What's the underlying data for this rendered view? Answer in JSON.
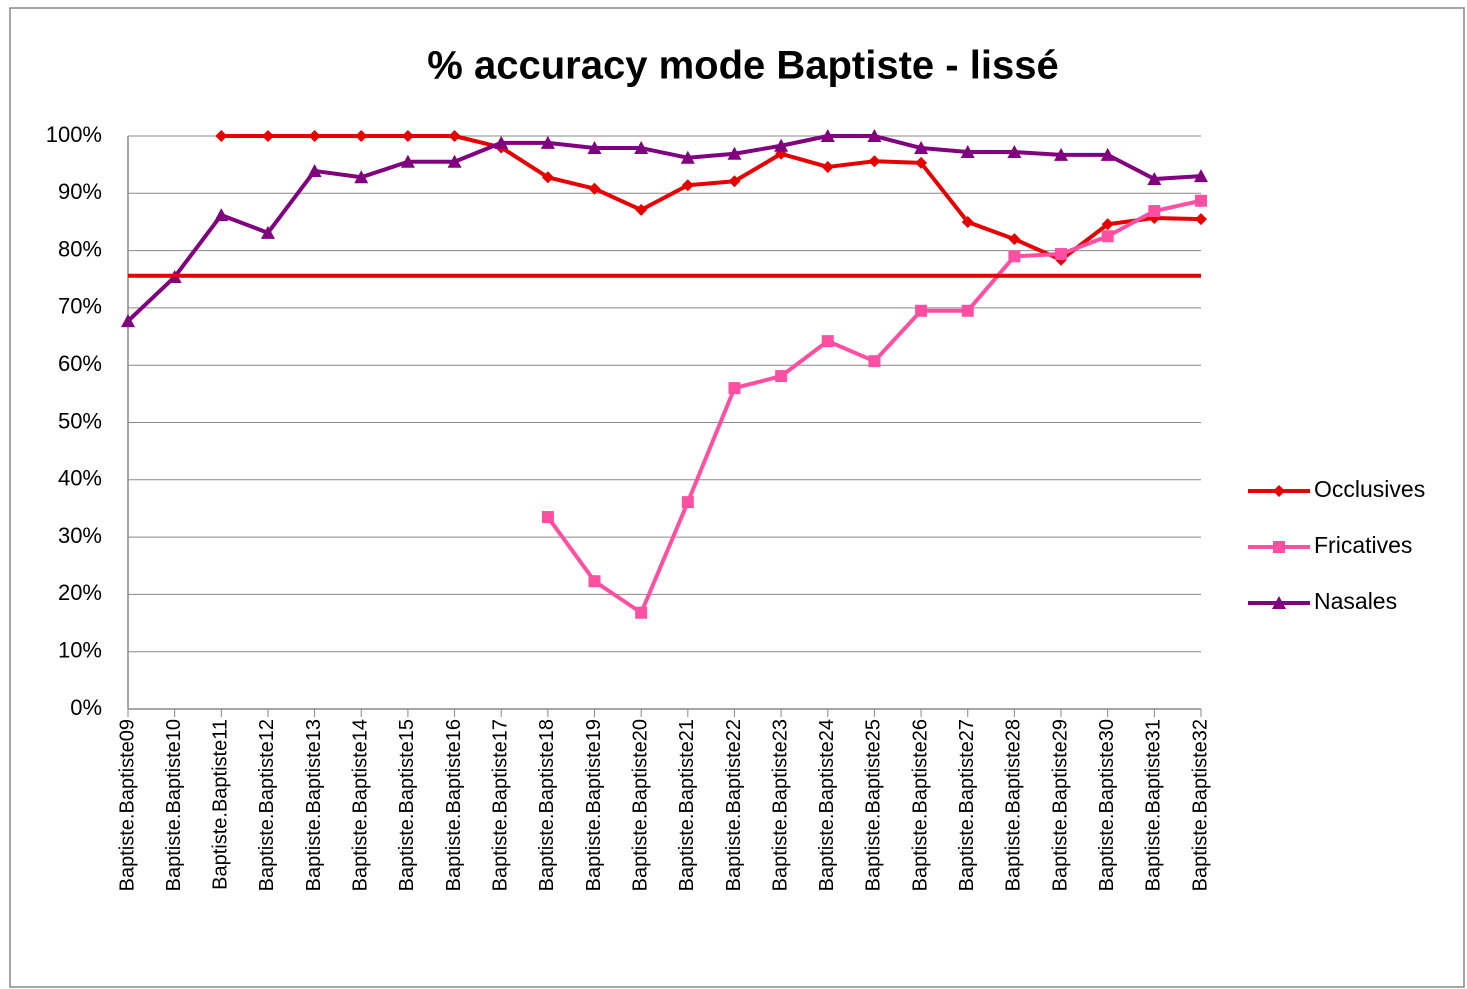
{
  "chart_data": {
    "type": "line",
    "title": "% accuracy mode Baptiste - lissé",
    "categories": [
      "Baptiste.Baptiste09",
      "Baptiste.Baptiste10",
      "Baptiste.Baptiste11",
      "Baptiste.Baptiste12",
      "Baptiste.Baptiste13",
      "Baptiste.Baptiste14",
      "Baptiste.Baptiste15",
      "Baptiste.Baptiste16",
      "Baptiste.Baptiste17",
      "Baptiste.Baptiste18",
      "Baptiste.Baptiste19",
      "Baptiste.Baptiste20",
      "Baptiste.Baptiste21",
      "Baptiste.Baptiste22",
      "Baptiste.Baptiste23",
      "Baptiste.Baptiste24",
      "Baptiste.Baptiste25",
      "Baptiste.Baptiste26",
      "Baptiste.Baptiste27",
      "Baptiste.Baptiste28",
      "Baptiste.Baptiste29",
      "Baptiste.Baptiste30",
      "Baptiste.Baptiste31",
      "Baptiste.Baptiste32"
    ],
    "series": [
      {
        "name": "Occlusives",
        "color": "#e60000",
        "marker": "diamond",
        "values": [
          null,
          null,
          100,
          100,
          100,
          100,
          100,
          100,
          98,
          92.8,
          90.8,
          87.1,
          91.4,
          92.1,
          96.9,
          94.6,
          95.6,
          95.3,
          85,
          82,
          78.4,
          84.6,
          85.7,
          85.5
        ]
      },
      {
        "name": "Fricatives",
        "color": "#ff4fa3",
        "marker": "square",
        "values": [
          null,
          null,
          null,
          null,
          null,
          null,
          null,
          null,
          null,
          33.5,
          22.3,
          16.8,
          36.1,
          56,
          58.1,
          64.2,
          60.7,
          69.5,
          69.5,
          79,
          79.4,
          82.5,
          86.9,
          88.7
        ]
      },
      {
        "name": "Nasales",
        "color": "#800080",
        "marker": "triangle",
        "values": [
          67.7,
          75.4,
          86.2,
          83.1,
          93.9,
          92.8,
          95.5,
          95.5,
          98.8,
          98.8,
          97.9,
          97.9,
          96.2,
          96.9,
          98.3,
          100,
          100,
          97.9,
          97.2,
          97.2,
          96.7,
          96.7,
          92.5,
          93
        ]
      }
    ],
    "reference_line": {
      "value": 75.6,
      "color": "#e60000"
    },
    "ylim": [
      0,
      100
    ],
    "yticks": [
      {
        "value": 0,
        "label": "0%"
      },
      {
        "value": 10,
        "label": "10%"
      },
      {
        "value": 20,
        "label": "20%"
      },
      {
        "value": 30,
        "label": "30%"
      },
      {
        "value": 40,
        "label": "40%"
      },
      {
        "value": 50,
        "label": "50%"
      },
      {
        "value": 60,
        "label": "60%"
      },
      {
        "value": 70,
        "label": "70%"
      },
      {
        "value": 80,
        "label": "80%"
      },
      {
        "value": 90,
        "label": "90%"
      },
      {
        "value": 100,
        "label": "100%"
      }
    ],
    "grid": true,
    "legend": "right"
  }
}
